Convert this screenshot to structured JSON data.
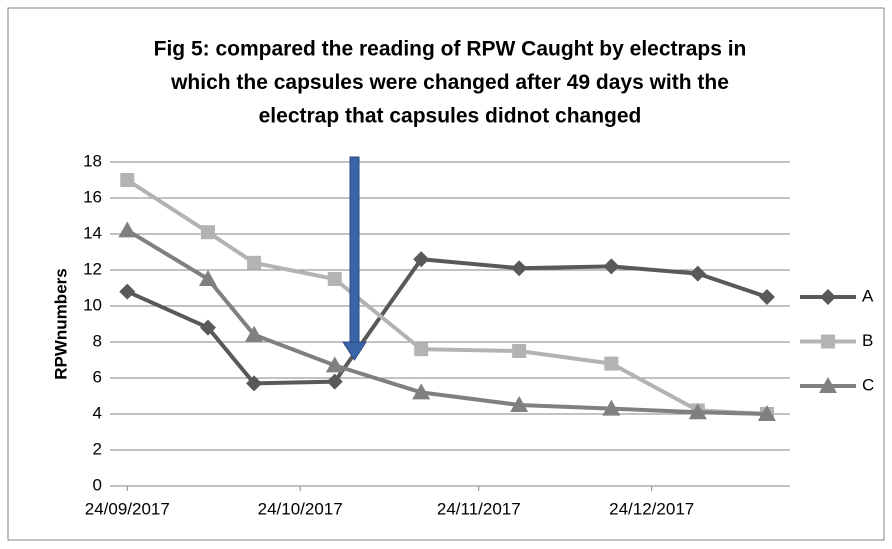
{
  "chart_data": {
    "type": "line",
    "title": [
      "Fig 5: compared the reading of RPW Caught by electraps in",
      "which the capsules were changed after 49 days with  the",
      "electrap that capsules didnot changed"
    ],
    "y_label": "RPWnumbers",
    "x": [
      "2017-09-24",
      "2017-10-08",
      "2017-10-16",
      "2017-10-30",
      "2017-11-14",
      "2017-12-01",
      "2017-12-17",
      "2018-01-01",
      "2018-01-13"
    ],
    "series": [
      {
        "name": "A",
        "color": "#595959",
        "marker": "diamond",
        "values": [
          10.8,
          8.8,
          5.7,
          5.8,
          12.6,
          12.1,
          12.2,
          11.8,
          10.5
        ]
      },
      {
        "name": "B",
        "color": "#b3b3b3",
        "marker": "square",
        "values": [
          17,
          14.1,
          12.4,
          11.5,
          7.6,
          7.5,
          6.8,
          4.2,
          4.0
        ]
      },
      {
        "name": "C",
        "color": "#808080",
        "marker": "triangle",
        "values": [
          14.2,
          11.5,
          8.4,
          6.7,
          5.2,
          4.5,
          4.3,
          4.1,
          4.0
        ]
      }
    ],
    "xlim": [
      "2017-09-21",
      "2018-01-17"
    ],
    "xticks": [
      {
        "value": "2017-09-24",
        "label": "24/09/2017"
      },
      {
        "value": "2017-10-24",
        "label": "24/10/2017"
      },
      {
        "value": "2017-11-24",
        "label": "24/11/2017"
      },
      {
        "value": "2017-12-24",
        "label": "24/12/2017"
      }
    ],
    "ylim": [
      0,
      18
    ],
    "yticks": [
      0,
      2,
      4,
      6,
      8,
      10,
      12,
      14,
      16,
      18
    ],
    "grid": true,
    "legend": "right"
  }
}
